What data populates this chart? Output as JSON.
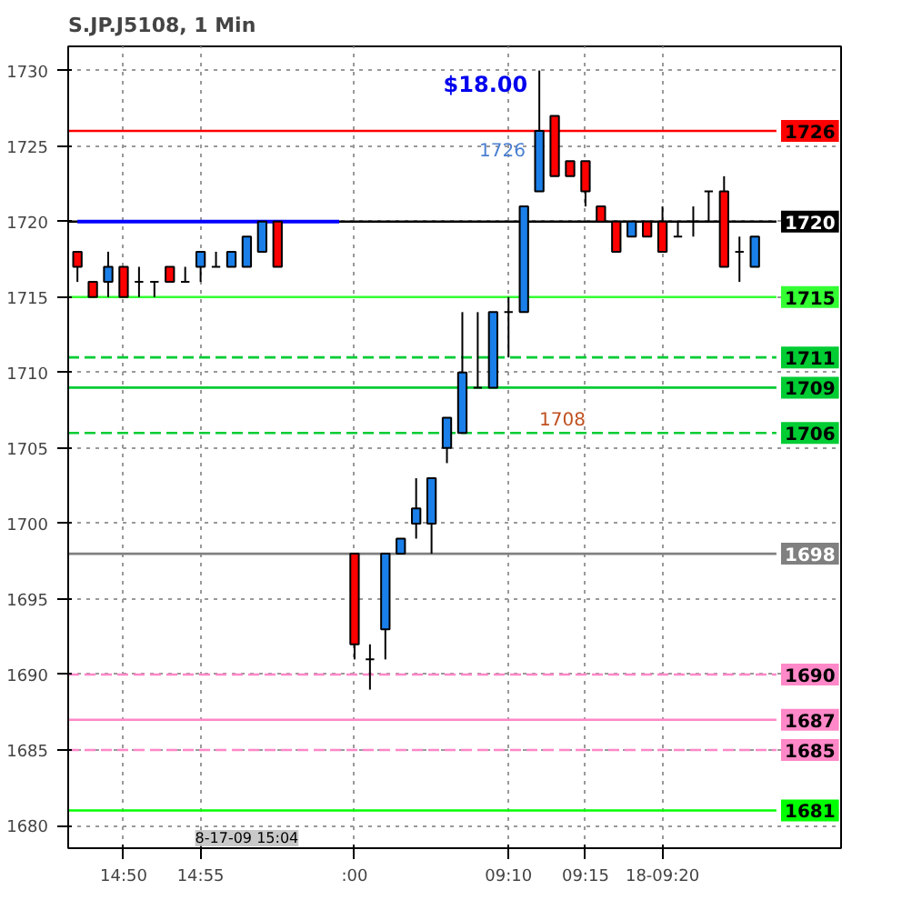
{
  "chart_data": {
    "type": "candlestick",
    "title": "S.JP.J5108, 1 Min",
    "categories": [
      null,
      null,
      null,
      "14:50",
      null,
      null,
      null,
      null,
      "14:55",
      null,
      null,
      null,
      null,
      null,
      null,
      null,
      null,
      null,
      ":00",
      null,
      null,
      null,
      null,
      null,
      null,
      null,
      null,
      null,
      "09:10",
      null,
      null,
      null,
      null,
      "09:15",
      null,
      null,
      null,
      null,
      "18-09:20",
      null,
      null,
      null,
      null,
      null,
      null
    ],
    "ohlc": [
      [
        1718,
        1718,
        1716,
        1717
      ],
      [
        1716,
        1716,
        1715,
        1715
      ],
      [
        1716,
        1718,
        1715,
        1717
      ],
      [
        1717,
        1717,
        1715,
        1715
      ],
      [
        1716,
        1717,
        1715,
        1716
      ],
      [
        1716,
        1716,
        1715,
        1716
      ],
      [
        1717,
        1717,
        1716,
        1716
      ],
      [
        1716,
        1717,
        1716,
        1716
      ],
      [
        1717,
        1718,
        1716,
        1718
      ],
      [
        1717,
        1718,
        1717,
        1717
      ],
      [
        1717,
        1718,
        1717,
        1718
      ],
      [
        1717,
        1719,
        1717,
        1719
      ],
      [
        1718,
        1720,
        1718,
        1720
      ],
      [
        1720,
        1720,
        1717,
        1717
      ],
      null,
      null,
      null,
      null,
      [
        1698,
        1698,
        1691,
        1692
      ],
      [
        1691,
        1692,
        1689,
        1691
      ],
      [
        1693,
        1698,
        1691,
        1698
      ],
      [
        1698,
        1699,
        1698,
        1699
      ],
      [
        1700,
        1703,
        1699,
        1701
      ],
      [
        1700,
        1703,
        1698,
        1703
      ],
      [
        1705,
        1707,
        1704,
        1707
      ],
      [
        1706,
        1714,
        1706,
        1710
      ],
      [
        1709,
        1714,
        1709,
        1709
      ],
      [
        1709,
        1714,
        1709,
        1714
      ],
      [
        1714,
        1715,
        1711,
        1714
      ],
      [
        1714,
        1721,
        1714,
        1721
      ],
      [
        1722,
        1730,
        1722,
        1726
      ],
      [
        1727,
        1727,
        1723,
        1723
      ],
      [
        1724,
        1724,
        1723,
        1723
      ],
      [
        1724,
        1724,
        1721,
        1722
      ],
      [
        1721,
        1721,
        1720,
        1720
      ],
      [
        1720,
        1720,
        1718,
        1718
      ],
      [
        1719,
        1720,
        1719,
        1720
      ],
      [
        1720,
        1720,
        1719,
        1719
      ],
      [
        1720,
        1721,
        1718,
        1718
      ],
      [
        1719,
        1720,
        1719,
        1719
      ],
      [
        1720,
        1721,
        1719,
        1720
      ],
      [
        1722,
        1722,
        1720,
        1722
      ],
      [
        1722,
        1723,
        1717,
        1717
      ],
      [
        1718,
        1719,
        1716,
        1718
      ],
      [
        1717,
        1719,
        1717,
        1719
      ]
    ],
    "colors": [
      "#ff0000",
      "#ff0000",
      "#1a7fe8",
      "#ff0000",
      "#000000",
      "#000000",
      "#ff0000",
      "#000000",
      "#1a7fe8",
      "#000000",
      "#1a7fe8",
      "#1a7fe8",
      "#1a7fe8",
      "#ff0000",
      null,
      null,
      null,
      null,
      "#ff0000",
      "#000000",
      "#1a7fe8",
      "#1a7fe8",
      "#1a7fe8",
      "#1a7fe8",
      "#1a7fe8",
      "#1a7fe8",
      "#000000",
      "#1a7fe8",
      "#000000",
      "#1a7fe8",
      "#1a7fe8",
      "#ff0000",
      "#ff0000",
      "#ff0000",
      "#ff0000",
      "#ff0000",
      "#1a7fe8",
      "#ff0000",
      "#ff0000",
      "#000000",
      "#000000",
      "#000000",
      "#ff0000",
      "#000000",
      "#1a7fe8"
    ],
    "series": [
      {
        "type": "line",
        "values": [
          1720,
          1720,
          1720,
          1720,
          1720,
          1720,
          1720,
          1720,
          1720,
          1720,
          1720,
          1720,
          1720,
          1720,
          1720,
          1720,
          1720,
          1720,
          null,
          null,
          null,
          null,
          null,
          null,
          null,
          null,
          null,
          null,
          null,
          null,
          null,
          null,
          null,
          null,
          null,
          null,
          null,
          null,
          null,
          null,
          null,
          null,
          null,
          null,
          null
        ],
        "color": "#0000ff"
      }
    ],
    "ylim": [
      1678.5,
      1731.6
    ],
    "yticks": [
      1680,
      1685,
      1690,
      1695,
      1700,
      1705,
      1710,
      1715,
      1720,
      1725,
      1730
    ],
    "grid": true,
    "ref_lines": [
      {
        "axis": "y",
        "value": 1726,
        "label": "1726",
        "color": "#ff0000",
        "line_style": "solid"
      },
      {
        "axis": "y",
        "value": 1720,
        "label": "1720",
        "color": "#000000",
        "line_style": "solid"
      },
      {
        "axis": "y",
        "value": 1715,
        "label": "1715",
        "color": "#33ff33",
        "line_style": "solid"
      },
      {
        "axis": "y",
        "value": 1711,
        "label": "1711",
        "color": "#00cc33",
        "line_style": "dashed"
      },
      {
        "axis": "y",
        "value": 1709,
        "label": "1709",
        "color": "#00cc33",
        "line_style": "solid"
      },
      {
        "axis": "y",
        "value": 1706,
        "label": "1706",
        "color": "#00cc33",
        "line_style": "dashed"
      },
      {
        "axis": "y",
        "value": 1698,
        "label": "1698",
        "color": "#808080",
        "line_style": "solid"
      },
      {
        "axis": "y",
        "value": 1690,
        "label": "1690",
        "color": "#ff88c8",
        "line_style": "dashed"
      },
      {
        "axis": "y",
        "value": 1687,
        "label": "1687",
        "color": "#ff88c8",
        "line_style": "solid"
      },
      {
        "axis": "y",
        "value": 1685,
        "label": "1685",
        "color": "#ff88c8",
        "line_style": "dashed"
      },
      {
        "axis": "y",
        "value": 1681,
        "label": "1681",
        "color": "#00ff00",
        "line_style": "solid"
      }
    ],
    "annotations": [
      "$18.00",
      "1726",
      "1708",
      "8-17-09 15:04"
    ]
  }
}
